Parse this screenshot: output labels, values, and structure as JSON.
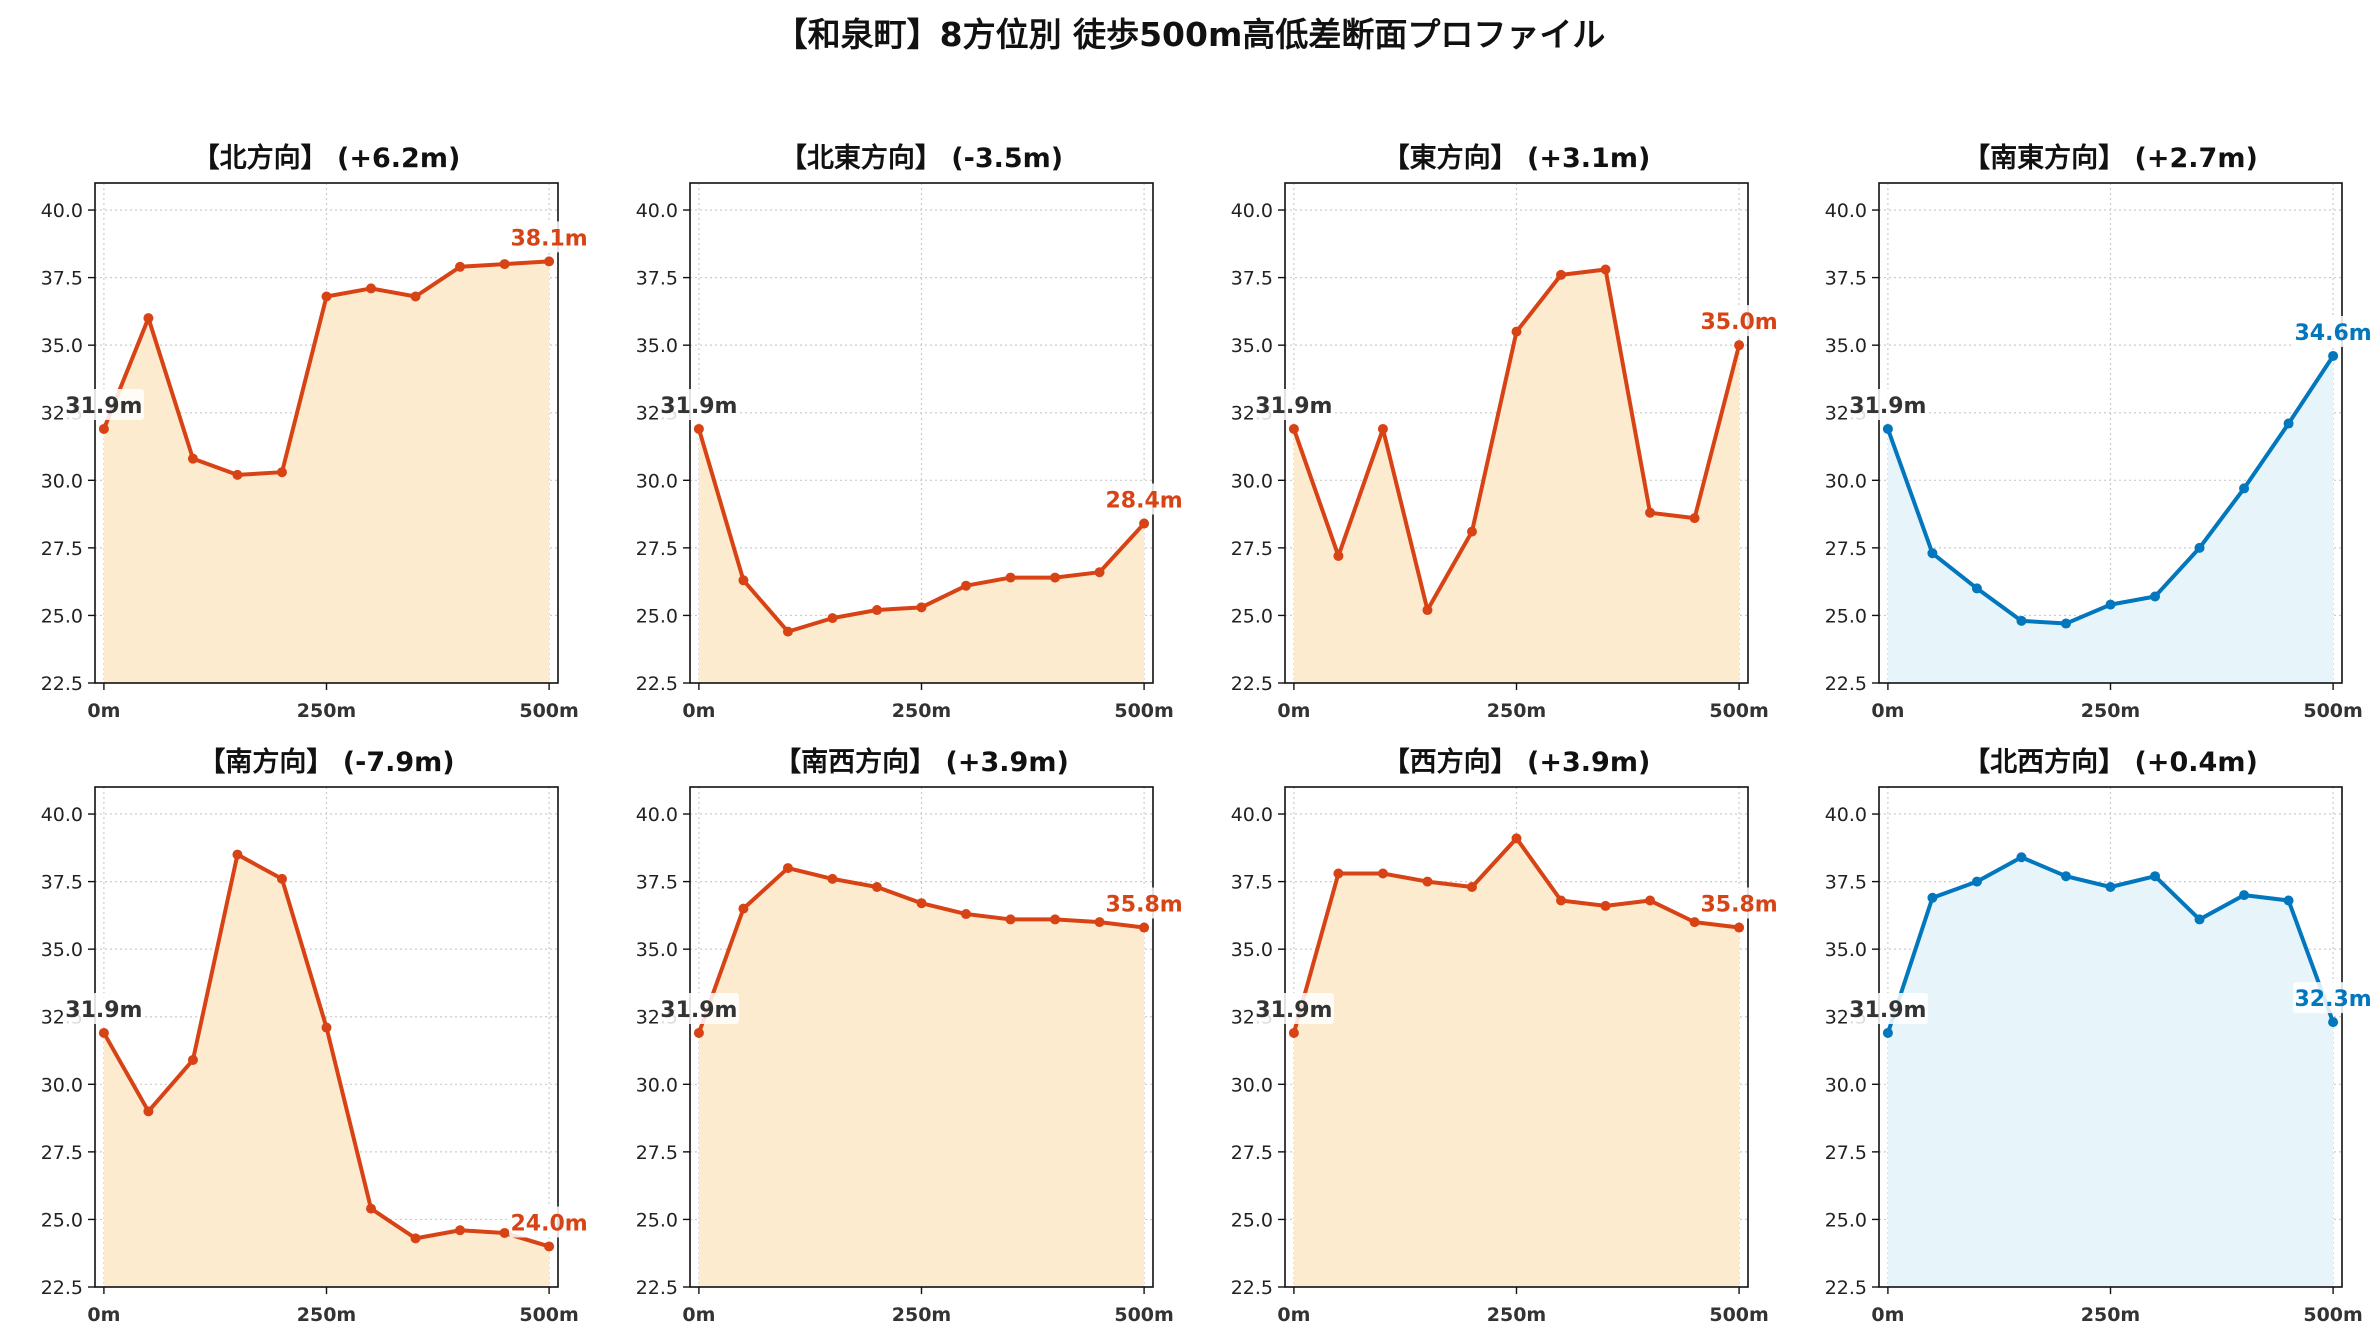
{
  "suptitle": "【和泉町】8方位別 徒歩500m高低差断面プロファイル",
  "colors": {
    "up": "#d84315",
    "down": "#0277bd",
    "fill_up": "#fdebd0",
    "fill_down": "#e7f5fb",
    "start_label": "#333333"
  },
  "chart_data": [
    {
      "type": "line",
      "title": "【北方向】 (+6.2m)",
      "trend": "up",
      "x": [
        0,
        50,
        100,
        150,
        200,
        250,
        300,
        350,
        400,
        450,
        500
      ],
      "y": [
        31.9,
        36.0,
        30.8,
        30.2,
        30.3,
        36.8,
        37.1,
        36.8,
        37.9,
        38.0,
        38.1
      ],
      "start_label": "31.9m",
      "end_label": "38.1m",
      "xticks": [
        "0m",
        "250m",
        "500m"
      ],
      "yticks": [
        "22.5",
        "25.0",
        "27.5",
        "30.0",
        "32.5",
        "35.0",
        "37.5",
        "40.0"
      ],
      "ylim": [
        22.5,
        41
      ],
      "xlim": [
        -10,
        510
      ],
      "grid": true
    },
    {
      "type": "line",
      "title": "【北東方向】 (-3.5m)",
      "trend": "up",
      "x": [
        0,
        50,
        100,
        150,
        200,
        250,
        300,
        350,
        400,
        450,
        500
      ],
      "y": [
        31.9,
        26.3,
        24.4,
        24.9,
        25.2,
        25.3,
        26.1,
        26.4,
        26.4,
        26.6,
        28.4
      ],
      "start_label": "31.9m",
      "end_label": "28.4m",
      "xticks": [
        "0m",
        "250m",
        "500m"
      ],
      "yticks": [
        "22.5",
        "25.0",
        "27.5",
        "30.0",
        "32.5",
        "35.0",
        "37.5",
        "40.0"
      ],
      "ylim": [
        22.5,
        41
      ],
      "xlim": [
        -10,
        510
      ],
      "grid": true
    },
    {
      "type": "line",
      "title": "【東方向】 (+3.1m)",
      "trend": "up",
      "x": [
        0,
        50,
        100,
        150,
        200,
        250,
        300,
        350,
        400,
        450,
        500
      ],
      "y": [
        31.9,
        27.2,
        31.9,
        25.2,
        28.1,
        35.5,
        37.6,
        37.8,
        28.8,
        28.6,
        35.0
      ],
      "start_label": "31.9m",
      "end_label": "35.0m",
      "xticks": [
        "0m",
        "250m",
        "500m"
      ],
      "yticks": [
        "22.5",
        "25.0",
        "27.5",
        "30.0",
        "32.5",
        "35.0",
        "37.5",
        "40.0"
      ],
      "ylim": [
        22.5,
        41
      ],
      "xlim": [
        -10,
        510
      ],
      "grid": true
    },
    {
      "type": "line",
      "title": "【南東方向】 (+2.7m)",
      "trend": "down",
      "x": [
        0,
        50,
        100,
        150,
        200,
        250,
        300,
        350,
        400,
        450,
        500
      ],
      "y": [
        31.9,
        27.3,
        26.0,
        24.8,
        24.7,
        25.4,
        25.7,
        27.5,
        29.7,
        32.1,
        34.6
      ],
      "start_label": "31.9m",
      "end_label": "34.6m",
      "xticks": [
        "0m",
        "250m",
        "500m"
      ],
      "yticks": [
        "22.5",
        "25.0",
        "27.5",
        "30.0",
        "32.5",
        "35.0",
        "37.5",
        "40.0"
      ],
      "ylim": [
        22.5,
        41
      ],
      "xlim": [
        -10,
        510
      ],
      "grid": true
    },
    {
      "type": "line",
      "title": "【南方向】 (-7.9m)",
      "trend": "up",
      "x": [
        0,
        50,
        100,
        150,
        200,
        250,
        300,
        350,
        400,
        450,
        500
      ],
      "y": [
        31.9,
        29.0,
        30.9,
        38.5,
        37.6,
        32.1,
        25.4,
        24.3,
        24.6,
        24.5,
        24.0
      ],
      "start_label": "31.9m",
      "end_label": "24.0m",
      "xticks": [
        "0m",
        "250m",
        "500m"
      ],
      "yticks": [
        "22.5",
        "25.0",
        "27.5",
        "30.0",
        "32.5",
        "35.0",
        "37.5",
        "40.0"
      ],
      "ylim": [
        22.5,
        41
      ],
      "xlim": [
        -10,
        510
      ],
      "grid": true
    },
    {
      "type": "line",
      "title": "【南西方向】 (+3.9m)",
      "trend": "up",
      "x": [
        0,
        50,
        100,
        150,
        200,
        250,
        300,
        350,
        400,
        450,
        500
      ],
      "y": [
        31.9,
        36.5,
        38.0,
        37.6,
        37.3,
        36.7,
        36.3,
        36.1,
        36.1,
        36.0,
        35.8
      ],
      "start_label": "31.9m",
      "end_label": "35.8m",
      "xticks": [
        "0m",
        "250m",
        "500m"
      ],
      "yticks": [
        "22.5",
        "25.0",
        "27.5",
        "30.0",
        "32.5",
        "35.0",
        "37.5",
        "40.0"
      ],
      "ylim": [
        22.5,
        41
      ],
      "xlim": [
        -10,
        510
      ],
      "grid": true
    },
    {
      "type": "line",
      "title": "【西方向】 (+3.9m)",
      "trend": "up",
      "x": [
        0,
        50,
        100,
        150,
        200,
        250,
        300,
        350,
        400,
        450,
        500
      ],
      "y": [
        31.9,
        37.8,
        37.8,
        37.5,
        37.3,
        39.1,
        36.8,
        36.6,
        36.8,
        36.0,
        35.8
      ],
      "start_label": "31.9m",
      "end_label": "35.8m",
      "xticks": [
        "0m",
        "250m",
        "500m"
      ],
      "yticks": [
        "22.5",
        "25.0",
        "27.5",
        "30.0",
        "32.5",
        "35.0",
        "37.5",
        "40.0"
      ],
      "ylim": [
        22.5,
        41
      ],
      "xlim": [
        -10,
        510
      ],
      "grid": true
    },
    {
      "type": "line",
      "title": "【北西方向】 (+0.4m)",
      "trend": "down",
      "x": [
        0,
        50,
        100,
        150,
        200,
        250,
        300,
        350,
        400,
        450,
        500
      ],
      "y": [
        31.9,
        36.9,
        37.5,
        38.4,
        37.7,
        37.3,
        37.7,
        36.1,
        37.0,
        36.8,
        32.3
      ],
      "start_label": "31.9m",
      "end_label": "32.3m",
      "xticks": [
        "0m",
        "250m",
        "500m"
      ],
      "yticks": [
        "22.5",
        "25.0",
        "27.5",
        "30.0",
        "32.5",
        "35.0",
        "37.5",
        "40.0"
      ],
      "ylim": [
        22.5,
        41
      ],
      "xlim": [
        -10,
        510
      ],
      "grid": true
    }
  ]
}
